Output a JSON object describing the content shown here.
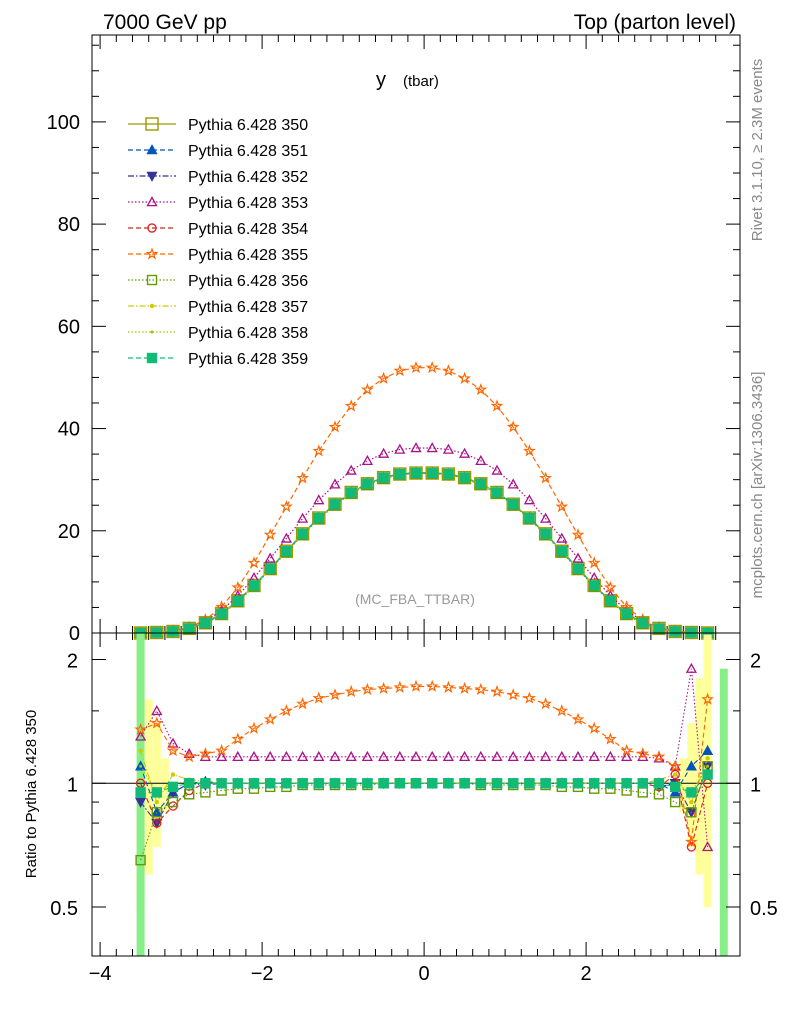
{
  "header": {
    "left": "7000 GeV pp",
    "right": "Top (parton level)",
    "side_top": "Rivet 3.1.10, ≥ 2.3M events",
    "side_bottom": "mcplots.cern.ch [arXiv:1306.3436]"
  },
  "chart_data": [
    {
      "type": "line",
      "title": "y",
      "title_sub": "(tbar)",
      "watermark": "(MC_FBA_TTBAR)",
      "ylim": [
        0,
        117
      ],
      "xlim": [
        -4.1,
        3.9
      ],
      "y_ticks": [
        "0",
        "20",
        "40",
        "60",
        "80",
        "100"
      ],
      "x": [
        -3.5,
        -3.3,
        -3.1,
        -2.9,
        -2.7,
        -2.5,
        -2.3,
        -2.1,
        -1.9,
        -1.7,
        -1.5,
        -1.3,
        -1.1,
        -0.9,
        -0.7,
        -0.5,
        -0.3,
        -0.1,
        0.1,
        0.3,
        0.5,
        0.7,
        0.9,
        1.1,
        1.3,
        1.5,
        1.7,
        1.9,
        2.1,
        2.3,
        2.5,
        2.7,
        2.9,
        3.1,
        3.3,
        3.5
      ],
      "series": [
        {
          "name": "Pythia 6.428 350",
          "color": "#999900",
          "marker": "square-open",
          "dash": "solid",
          "values": [
            0.0,
            0.1,
            0.3,
            0.9,
            2.0,
            3.8,
            6.3,
            9.3,
            12.6,
            16.0,
            19.4,
            22.5,
            25.2,
            27.5,
            29.2,
            30.4,
            31.1,
            31.3,
            31.3,
            31.1,
            30.4,
            29.2,
            27.5,
            25.2,
            22.5,
            19.4,
            16.0,
            12.6,
            9.3,
            6.3,
            3.8,
            2.0,
            0.9,
            0.3,
            0.1,
            0.0
          ]
        },
        {
          "name": "Pythia 6.428 351",
          "color": "#0055bb",
          "marker": "triangle-up",
          "dash": "dashed",
          "values": [
            0.0,
            0.1,
            0.3,
            0.9,
            2.0,
            3.8,
            6.3,
            9.3,
            12.6,
            16.0,
            19.4,
            22.5,
            25.2,
            27.5,
            29.2,
            30.4,
            31.1,
            31.3,
            31.3,
            31.1,
            30.4,
            29.2,
            27.5,
            25.2,
            22.5,
            19.4,
            16.0,
            12.6,
            9.3,
            6.3,
            3.8,
            2.0,
            0.9,
            0.3,
            0.1,
            0.0
          ]
        },
        {
          "name": "Pythia 6.428 352",
          "color": "#333399",
          "marker": "triangle-down",
          "dash": "dashdot",
          "values": [
            0.0,
            0.1,
            0.3,
            0.9,
            2.0,
            3.8,
            6.3,
            9.3,
            12.6,
            16.0,
            19.4,
            22.5,
            25.2,
            27.5,
            29.2,
            30.4,
            31.1,
            31.3,
            31.3,
            31.1,
            30.4,
            29.2,
            27.5,
            25.2,
            22.5,
            19.4,
            16.0,
            12.6,
            9.3,
            6.3,
            3.8,
            2.0,
            0.9,
            0.3,
            0.1,
            0.0
          ]
        },
        {
          "name": "Pythia 6.428 353",
          "color": "#aa1188",
          "marker": "triangle-up-open",
          "dash": "dotted",
          "values": [
            0.0,
            0.1,
            0.4,
            1.1,
            2.3,
            4.4,
            7.3,
            10.8,
            14.6,
            18.5,
            22.4,
            26.0,
            29.1,
            31.8,
            33.7,
            35.1,
            35.9,
            36.2,
            36.2,
            35.9,
            35.1,
            33.7,
            31.8,
            29.1,
            26.0,
            22.4,
            18.5,
            14.6,
            10.8,
            7.3,
            4.4,
            2.3,
            1.1,
            0.4,
            0.1,
            0.0
          ]
        },
        {
          "name": "Pythia 6.428 354",
          "color": "#dd2222",
          "marker": "circle-open",
          "dash": "dashed",
          "values": [
            0.0,
            0.1,
            0.3,
            0.9,
            2.0,
            3.8,
            6.3,
            9.3,
            12.6,
            16.0,
            19.4,
            22.5,
            25.2,
            27.5,
            29.2,
            30.4,
            31.1,
            31.3,
            31.3,
            31.1,
            30.4,
            29.2,
            27.5,
            25.2,
            22.5,
            19.4,
            16.0,
            12.6,
            9.3,
            6.3,
            3.8,
            2.0,
            0.9,
            0.3,
            0.1,
            0.0
          ]
        },
        {
          "name": "Pythia 6.428 355",
          "color": "#ff6600",
          "marker": "star-open",
          "dash": "dashed",
          "values": [
            0.0,
            0.1,
            0.4,
            1.1,
            2.6,
            5.1,
            8.9,
            13.7,
            19.2,
            24.7,
            30.3,
            35.6,
            40.3,
            44.4,
            47.6,
            49.8,
            51.3,
            51.9,
            51.9,
            51.3,
            49.8,
            47.6,
            44.4,
            40.3,
            35.6,
            30.3,
            24.7,
            19.2,
            13.7,
            8.9,
            5.1,
            2.6,
            1.1,
            0.4,
            0.1,
            0.0
          ]
        },
        {
          "name": "Pythia 6.428 356",
          "color": "#669900",
          "marker": "square-open",
          "dash": "dotted",
          "values": [
            0.0,
            0.1,
            0.3,
            0.8,
            1.8,
            3.6,
            6.1,
            9.1,
            12.4,
            15.8,
            19.2,
            22.3,
            25.0,
            27.3,
            29.0,
            30.2,
            31.0,
            31.2,
            31.2,
            31.0,
            30.2,
            29.0,
            27.3,
            25.0,
            22.3,
            19.2,
            15.8,
            12.4,
            9.1,
            6.1,
            3.6,
            1.8,
            0.8,
            0.3,
            0.1,
            0.0
          ]
        },
        {
          "name": "Pythia 6.428 357",
          "color": "#cccc00",
          "marker": "dot",
          "dash": "dashdot",
          "values": [
            0.0,
            0.1,
            0.3,
            0.9,
            2.0,
            3.8,
            6.3,
            9.3,
            12.6,
            16.0,
            19.4,
            22.5,
            25.2,
            27.5,
            29.2,
            30.4,
            31.1,
            31.3,
            31.3,
            31.1,
            30.4,
            29.2,
            27.5,
            25.2,
            22.5,
            19.4,
            16.0,
            12.6,
            9.3,
            6.3,
            3.8,
            2.0,
            0.9,
            0.3,
            0.1,
            0.0
          ]
        },
        {
          "name": "Pythia 6.428 358",
          "color": "#99cc00",
          "marker": "dot-small",
          "dash": "dotted",
          "values": [
            0.0,
            0.1,
            0.3,
            0.9,
            2.0,
            3.8,
            6.3,
            9.3,
            12.6,
            16.0,
            19.4,
            22.5,
            25.2,
            27.5,
            29.2,
            30.4,
            31.1,
            31.3,
            31.3,
            31.1,
            30.4,
            29.2,
            27.5,
            25.2,
            22.5,
            19.4,
            16.0,
            12.6,
            9.3,
            6.3,
            3.8,
            2.0,
            0.9,
            0.3,
            0.1,
            0.0
          ]
        },
        {
          "name": "Pythia 6.428 359",
          "color": "#11bb77",
          "marker": "square-filled",
          "dash": "dashed",
          "values": [
            0.0,
            0.1,
            0.3,
            0.9,
            2.0,
            3.8,
            6.3,
            9.3,
            12.6,
            16.0,
            19.4,
            22.5,
            25.2,
            27.5,
            29.2,
            30.4,
            31.1,
            31.3,
            31.3,
            31.1,
            30.4,
            29.2,
            27.5,
            25.2,
            22.5,
            19.4,
            16.0,
            12.6,
            9.3,
            6.3,
            3.8,
            2.0,
            0.9,
            0.3,
            0.1,
            0.0
          ]
        }
      ]
    },
    {
      "type": "line",
      "ylabel": "Ratio to Pythia 6.428 350",
      "ylim": [
        0.38,
        2.32
      ],
      "xlim": [
        -4.1,
        3.9
      ],
      "x_ticks": [
        {
          "value": -4,
          "label": "−4"
        },
        {
          "value": -2,
          "label": "−2"
        },
        {
          "value": 0,
          "label": "0"
        },
        {
          "value": 2,
          "label": "2"
        }
      ],
      "y_ticks": [
        {
          "value": 0.5,
          "label": "0.5"
        },
        {
          "value": 1,
          "label": "1"
        },
        {
          "value": 2,
          "label": "2"
        }
      ],
      "reference_line": 1,
      "x": [
        -3.5,
        -3.3,
        -3.1,
        -2.9,
        -2.7,
        -2.5,
        -2.3,
        -2.1,
        -1.9,
        -1.7,
        -1.5,
        -1.3,
        -1.1,
        -0.9,
        -0.7,
        -0.5,
        -0.3,
        -0.1,
        0.1,
        0.3,
        0.5,
        0.7,
        0.9,
        1.1,
        1.3,
        1.5,
        1.7,
        1.9,
        2.1,
        2.3,
        2.5,
        2.7,
        2.9,
        3.1,
        3.3,
        3.5
      ],
      "series": [
        {
          "name": "Pythia 6.428 351",
          "values": [
            1.1,
            0.85,
            0.95,
            1.0,
            1.01,
            1.0,
            1.0,
            1.0,
            1.0,
            1.0,
            1.0,
            1.0,
            1.0,
            1.0,
            1.0,
            1.0,
            1.0,
            1.0,
            1.0,
            1.0,
            1.0,
            1.0,
            1.0,
            1.0,
            1.0,
            1.0,
            1.0,
            1.0,
            1.0,
            1.0,
            1.0,
            1.0,
            1.0,
            0.95,
            1.1,
            1.2
          ]
        },
        {
          "name": "Pythia 6.428 352",
          "values": [
            0.9,
            0.8,
            0.95,
            1.0,
            0.99,
            1.0,
            1.0,
            1.0,
            1.0,
            1.0,
            1.0,
            1.0,
            1.0,
            1.0,
            1.0,
            1.0,
            1.0,
            1.0,
            1.0,
            1.0,
            1.0,
            1.0,
            1.0,
            1.0,
            1.0,
            1.0,
            1.0,
            1.0,
            1.0,
            1.0,
            1.0,
            1.0,
            0.98,
            1.0,
            0.85,
            1.1
          ]
        },
        {
          "name": "Pythia 6.428 353",
          "values": [
            1.3,
            1.5,
            1.25,
            1.18,
            1.16,
            1.16,
            1.16,
            1.16,
            1.16,
            1.16,
            1.16,
            1.16,
            1.16,
            1.16,
            1.16,
            1.16,
            1.16,
            1.16,
            1.16,
            1.16,
            1.16,
            1.16,
            1.16,
            1.16,
            1.16,
            1.16,
            1.16,
            1.16,
            1.16,
            1.16,
            1.16,
            1.16,
            1.15,
            1.1,
            1.9,
            0.7
          ]
        },
        {
          "name": "Pythia 6.428 354",
          "values": [
            1.0,
            0.8,
            0.88,
            0.96,
            1.0,
            1.0,
            1.0,
            1.0,
            1.0,
            1.0,
            1.0,
            1.0,
            1.0,
            1.0,
            1.0,
            1.0,
            1.0,
            1.0,
            1.0,
            1.0,
            1.0,
            1.0,
            1.0,
            1.0,
            1.0,
            1.0,
            1.0,
            1.0,
            1.0,
            1.0,
            1.0,
            1.0,
            0.98,
            1.05,
            0.7,
            1.0
          ]
        },
        {
          "name": "Pythia 6.428 355",
          "values": [
            1.35,
            1.4,
            1.2,
            1.16,
            1.18,
            1.2,
            1.28,
            1.36,
            1.43,
            1.5,
            1.56,
            1.61,
            1.64,
            1.67,
            1.69,
            1.7,
            1.71,
            1.72,
            1.72,
            1.71,
            1.7,
            1.69,
            1.67,
            1.64,
            1.61,
            1.56,
            1.5,
            1.43,
            1.36,
            1.28,
            1.2,
            1.18,
            1.16,
            1.1,
            0.72,
            1.6
          ]
        },
        {
          "name": "Pythia 6.428 356",
          "values": [
            0.65,
            0.85,
            0.9,
            0.94,
            0.95,
            0.96,
            0.97,
            0.97,
            0.98,
            0.98,
            0.99,
            0.99,
            0.99,
            0.99,
            0.99,
            1.0,
            1.0,
            1.0,
            1.0,
            1.0,
            1.0,
            0.99,
            0.99,
            0.99,
            0.99,
            0.99,
            0.98,
            0.98,
            0.97,
            0.97,
            0.96,
            0.95,
            0.94,
            0.9,
            0.85,
            1.1
          ]
        },
        {
          "name": "Pythia 6.428 357",
          "values": [
            1.2,
            0.9,
            1.05,
            1.02,
            1.01,
            1.0,
            1.0,
            1.0,
            1.0,
            1.0,
            1.0,
            1.0,
            1.0,
            1.0,
            1.0,
            1.0,
            1.0,
            1.0,
            1.0,
            1.0,
            1.0,
            1.0,
            1.0,
            1.0,
            1.0,
            1.0,
            1.0,
            1.0,
            1.0,
            1.0,
            1.0,
            1.0,
            1.02,
            1.05,
            0.9,
            1.15
          ]
        },
        {
          "name": "Pythia 6.428 358",
          "values": [
            1.1,
            0.95,
            1.0,
            1.01,
            1.0,
            1.0,
            1.0,
            1.0,
            1.0,
            1.0,
            1.0,
            1.0,
            1.0,
            1.0,
            1.0,
            1.0,
            1.0,
            1.0,
            1.0,
            1.0,
            1.0,
            1.0,
            1.0,
            1.0,
            1.0,
            1.0,
            1.0,
            1.0,
            1.0,
            1.0,
            1.0,
            1.0,
            1.01,
            1.0,
            0.95,
            1.1
          ]
        },
        {
          "name": "Pythia 6.428 359",
          "values": [
            0.95,
            0.95,
            0.98,
            1.0,
            1.0,
            1.0,
            1.0,
            1.0,
            1.0,
            1.0,
            1.0,
            1.0,
            1.0,
            1.0,
            1.0,
            1.0,
            1.0,
            1.0,
            1.0,
            1.0,
            1.0,
            1.0,
            1.0,
            1.0,
            1.0,
            1.0,
            1.0,
            1.0,
            1.0,
            1.0,
            1.0,
            1.0,
            1.0,
            0.98,
            0.95,
            1.05
          ]
        }
      ],
      "uncertainty_bands": [
        {
          "color": "#ffff99",
          "x": [
            -3.5,
            -3.4,
            -3.3,
            -3.2,
            3.2,
            3.3,
            3.4,
            3.5
          ],
          "low": [
            0.5,
            0.6,
            0.7,
            0.85,
            0.85,
            0.7,
            0.6,
            0.5
          ],
          "high": [
            2.3,
            1.6,
            1.4,
            1.15,
            1.15,
            1.4,
            1.8,
            2.3
          ]
        },
        {
          "color": "#88ee88",
          "x": [
            -3.5,
            3.7
          ],
          "low": [
            0.38,
            0.38
          ],
          "high": [
            2.32,
            1.9
          ]
        }
      ]
    }
  ]
}
